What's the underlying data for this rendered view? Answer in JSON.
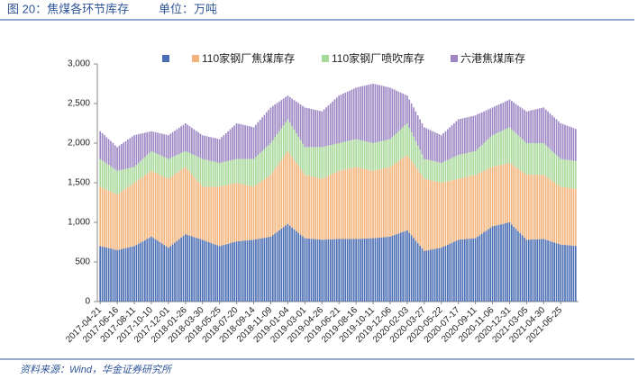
{
  "header": {
    "title": "图 20：焦煤各环节库存",
    "unit": "单位：万吨"
  },
  "footer": {
    "source": "资料来源：Wind，华金证券研究所"
  },
  "chart_data": {
    "type": "stacked-bar",
    "categories": [
      "2017-04-21",
      null,
      null,
      null,
      null,
      null,
      null,
      null,
      "2017-06-16",
      null,
      null,
      null,
      null,
      null,
      null,
      null,
      "2017-08-11",
      null,
      null,
      null,
      null,
      null,
      null,
      null,
      "2017-10-10",
      null,
      null,
      null,
      null,
      null,
      null,
      null,
      "2017-12-01",
      null,
      null,
      null,
      null,
      null,
      null,
      null,
      "2018-01-26",
      null,
      null,
      null,
      null,
      null,
      null,
      null,
      "2018-03-30",
      null,
      null,
      null,
      null,
      null,
      null,
      null,
      "2018-05-25",
      null,
      null,
      null,
      null,
      null,
      null,
      null,
      "2018-07-20",
      null,
      null,
      null,
      null,
      null,
      null,
      null,
      "2018-09-14",
      null,
      null,
      null,
      null,
      null,
      null,
      null,
      "2018-11-09",
      null,
      null,
      null,
      null,
      null,
      null,
      null,
      "2019-01-04",
      null,
      null,
      null,
      null,
      null,
      null,
      null,
      "2019-03-01",
      null,
      null,
      null,
      null,
      null,
      null,
      null,
      "2019-04-26",
      null,
      null,
      null,
      null,
      null,
      null,
      null,
      "2019-06-21",
      null,
      null,
      null,
      null,
      null,
      null,
      null,
      "2019-08-16",
      null,
      null,
      null,
      null,
      null,
      null,
      null,
      "2019-10-11",
      null,
      null,
      null,
      null,
      null,
      null,
      null,
      "2019-12-06",
      null,
      null,
      null,
      null,
      null,
      null,
      null,
      "2020-02-03",
      null,
      null,
      null,
      null,
      null,
      null,
      null,
      "2020-03-27",
      null,
      null,
      null,
      null,
      null,
      null,
      null,
      "2020-05-22",
      null,
      null,
      null,
      null,
      null,
      null,
      null,
      "2020-07-17",
      null,
      null,
      null,
      null,
      null,
      null,
      null,
      "2020-09-11",
      null,
      null,
      null,
      null,
      null,
      null,
      null,
      "2020-11-06",
      null,
      null,
      null,
      null,
      null,
      null,
      null,
      "2020-12-31",
      null,
      null,
      null,
      null,
      null,
      null,
      null,
      "2021-03-05",
      null,
      null,
      null,
      null,
      null,
      null,
      null,
      "2021-04-30",
      null,
      null,
      null,
      null,
      null,
      null,
      null,
      "2021-06-25",
      null,
      null,
      null,
      null,
      null,
      null,
      null
    ],
    "series": [
      {
        "color": "#4a6db3",
        "values": [
          700,
          694,
          688,
          681,
          675,
          669,
          663,
          656,
          650,
          656,
          663,
          669,
          675,
          681,
          688,
          694,
          700,
          715,
          730,
          745,
          760,
          775,
          790,
          805,
          820,
          803,
          785,
          768,
          750,
          733,
          715,
          698,
          680,
          701,
          723,
          744,
          765,
          786,
          808,
          829,
          850,
          841,
          833,
          824,
          815,
          806,
          798,
          789,
          780,
          770,
          760,
          750,
          740,
          730,
          720,
          710,
          700,
          708,
          715,
          723,
          730,
          738,
          745,
          753,
          760,
          763,
          765,
          768,
          770,
          773,
          775,
          778,
          780,
          785,
          790,
          795,
          800,
          805,
          810,
          815,
          820,
          840,
          860,
          880,
          900,
          920,
          940,
          960,
          980,
          958,
          935,
          913,
          890,
          868,
          845,
          823,
          800,
          798,
          795,
          793,
          790,
          788,
          785,
          783,
          780,
          781,
          783,
          784,
          785,
          786,
          788,
          789,
          790,
          790,
          790,
          790,
          790,
          790,
          790,
          790,
          790,
          791,
          793,
          794,
          795,
          796,
          798,
          799,
          800,
          803,
          805,
          808,
          810,
          813,
          815,
          818,
          820,
          830,
          840,
          850,
          860,
          870,
          880,
          890,
          900,
          868,
          835,
          803,
          770,
          738,
          705,
          673,
          640,
          645,
          650,
          655,
          660,
          665,
          670,
          675,
          680,
          693,
          705,
          718,
          730,
          743,
          755,
          768,
          780,
          783,
          785,
          788,
          790,
          793,
          795,
          798,
          800,
          819,
          838,
          856,
          875,
          894,
          913,
          931,
          950,
          956,
          963,
          969,
          975,
          981,
          988,
          994,
          1000,
          973,
          945,
          918,
          890,
          863,
          835,
          808,
          780,
          781,
          783,
          784,
          785,
          786,
          788,
          789,
          790,
          781,
          773,
          764,
          755,
          746,
          738,
          729,
          720,
          718,
          715,
          713,
          710,
          708,
          705,
          703
        ]
      },
      {
        "name": "110家钢厂焦煤库存",
        "color": "#f2b47b",
        "values": [
          750,
          744,
          738,
          731,
          725,
          719,
          713,
          706,
          700,
          713,
          725,
          738,
          750,
          763,
          775,
          788,
          800,
          804,
          808,
          811,
          815,
          819,
          823,
          826,
          830,
          835,
          840,
          845,
          850,
          855,
          860,
          865,
          870,
          868,
          865,
          863,
          860,
          858,
          855,
          853,
          850,
          828,
          805,
          783,
          760,
          738,
          715,
          693,
          670,
          680,
          690,
          700,
          710,
          720,
          730,
          740,
          750,
          749,
          748,
          746,
          745,
          744,
          743,
          741,
          740,
          731,
          723,
          714,
          705,
          696,
          688,
          679,
          670,
          684,
          698,
          711,
          725,
          739,
          753,
          766,
          780,
          798,
          815,
          833,
          850,
          868,
          885,
          903,
          920,
          905,
          890,
          875,
          860,
          845,
          830,
          815,
          800,
          796,
          793,
          789,
          785,
          781,
          778,
          774,
          770,
          781,
          793,
          804,
          815,
          826,
          838,
          849,
          860,
          866,
          873,
          879,
          885,
          891,
          898,
          904,
          910,
          903,
          895,
          888,
          880,
          873,
          865,
          858,
          850,
          854,
          858,
          861,
          865,
          869,
          873,
          876,
          880,
          889,
          898,
          906,
          915,
          924,
          933,
          941,
          950,
          945,
          940,
          935,
          930,
          925,
          920,
          915,
          910,
          899,
          888,
          876,
          865,
          854,
          843,
          831,
          820,
          814,
          808,
          801,
          795,
          789,
          783,
          776,
          770,
          774,
          778,
          781,
          785,
          789,
          793,
          796,
          800,
          794,
          788,
          781,
          775,
          769,
          763,
          756,
          750,
          750,
          750,
          750,
          750,
          750,
          750,
          750,
          750,
          759,
          768,
          776,
          785,
          794,
          803,
          811,
          820,
          819,
          818,
          816,
          815,
          814,
          813,
          811,
          810,
          800,
          790,
          780,
          770,
          760,
          750,
          740,
          730,
          729,
          728,
          726,
          725,
          724,
          723,
          721
        ]
      },
      {
        "name": "110家钢厂喷吹库存",
        "color": "#a8d99b",
        "values": [
          350,
          344,
          338,
          331,
          325,
          319,
          313,
          306,
          300,
          288,
          275,
          263,
          250,
          238,
          225,
          213,
          200,
          206,
          213,
          219,
          225,
          231,
          238,
          244,
          250,
          250,
          250,
          250,
          250,
          250,
          250,
          250,
          250,
          244,
          238,
          231,
          225,
          219,
          213,
          206,
          200,
          219,
          238,
          256,
          275,
          294,
          313,
          331,
          350,
          344,
          338,
          331,
          325,
          319,
          313,
          306,
          300,
          300,
          300,
          300,
          300,
          300,
          300,
          300,
          300,
          306,
          313,
          319,
          325,
          331,
          338,
          344,
          350,
          356,
          363,
          369,
          375,
          381,
          388,
          394,
          400,
          400,
          400,
          400,
          400,
          400,
          400,
          400,
          400,
          394,
          388,
          381,
          375,
          369,
          363,
          356,
          350,
          356,
          363,
          369,
          375,
          381,
          388,
          394,
          400,
          394,
          388,
          381,
          375,
          369,
          363,
          356,
          350,
          350,
          350,
          350,
          350,
          350,
          350,
          350,
          350,
          350,
          350,
          350,
          350,
          350,
          350,
          350,
          350,
          350,
          350,
          350,
          350,
          350,
          350,
          350,
          350,
          356,
          363,
          369,
          375,
          381,
          388,
          394,
          400,
          381,
          363,
          344,
          325,
          306,
          288,
          269,
          250,
          250,
          250,
          250,
          250,
          250,
          250,
          250,
          250,
          256,
          263,
          269,
          275,
          281,
          288,
          294,
          300,
          300,
          300,
          300,
          300,
          300,
          300,
          300,
          300,
          313,
          325,
          338,
          350,
          363,
          375,
          388,
          400,
          406,
          413,
          419,
          425,
          431,
          438,
          444,
          450,
          444,
          438,
          431,
          425,
          419,
          413,
          406,
          400,
          400,
          400,
          400,
          400,
          400,
          400,
          400,
          400,
          394,
          388,
          381,
          375,
          369,
          363,
          356,
          350,
          350,
          350,
          350,
          350,
          350,
          350,
          350
        ]
      },
      {
        "name": "六港焦煤库存",
        "color": "#9c87c4",
        "values": [
          350,
          344,
          338,
          331,
          325,
          319,
          313,
          306,
          300,
          313,
          325,
          338,
          350,
          363,
          375,
          388,
          400,
          381,
          363,
          344,
          325,
          306,
          288,
          269,
          250,
          256,
          263,
          269,
          275,
          281,
          288,
          294,
          300,
          306,
          313,
          319,
          325,
          331,
          338,
          344,
          350,
          344,
          338,
          331,
          325,
          319,
          313,
          306,
          300,
          300,
          300,
          300,
          300,
          300,
          300,
          300,
          300,
          319,
          338,
          356,
          375,
          394,
          413,
          431,
          450,
          444,
          438,
          431,
          425,
          419,
          413,
          406,
          400,
          406,
          413,
          419,
          425,
          431,
          438,
          444,
          450,
          431,
          413,
          394,
          375,
          356,
          338,
          319,
          300,
          325,
          350,
          375,
          400,
          425,
          450,
          475,
          500,
          494,
          488,
          481,
          475,
          469,
          463,
          456,
          450,
          469,
          488,
          506,
          525,
          544,
          563,
          581,
          600,
          606,
          613,
          619,
          625,
          631,
          638,
          644,
          650,
          663,
          675,
          688,
          700,
          713,
          725,
          738,
          750,
          738,
          725,
          713,
          700,
          688,
          675,
          663,
          650,
          613,
          575,
          538,
          500,
          463,
          425,
          388,
          350,
          356,
          363,
          369,
          375,
          381,
          388,
          394,
          400,
          394,
          388,
          381,
          375,
          369,
          363,
          356,
          350,
          363,
          375,
          388,
          400,
          413,
          425,
          438,
          450,
          450,
          450,
          450,
          450,
          450,
          450,
          450,
          450,
          438,
          425,
          413,
          400,
          388,
          375,
          363,
          350,
          350,
          350,
          350,
          350,
          350,
          350,
          350,
          350,
          356,
          363,
          369,
          375,
          381,
          388,
          394,
          400,
          406,
          413,
          419,
          425,
          431,
          438,
          444,
          450,
          450,
          450,
          450,
          450,
          450,
          450,
          450,
          450,
          444,
          438,
          431,
          425,
          419,
          413,
          406
        ]
      }
    ],
    "ylim": [
      0,
      3000
    ],
    "yticks": [
      0,
      500,
      {
        "value": 1000,
        "label": "1,000"
      },
      {
        "value": 1500,
        "label": "1,500"
      },
      {
        "value": 2000,
        "label": "2,000"
      },
      {
        "value": 2500,
        "label": "2,500"
      },
      {
        "value": 3000,
        "label": "3,000"
      }
    ],
    "grid": false,
    "legend": "top"
  }
}
